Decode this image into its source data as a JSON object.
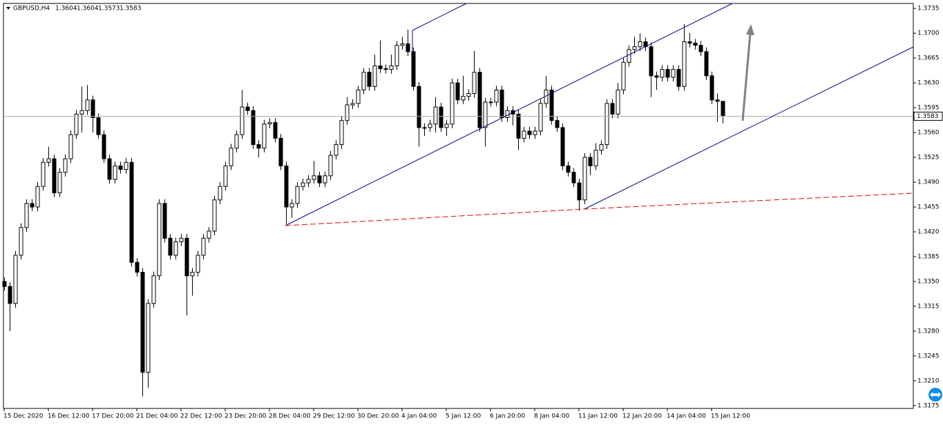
{
  "chart_data": {
    "type": "candlestick",
    "symbol": "GBPUSD,H4",
    "up_color": "#ffffff",
    "down_color": "#000000",
    "outline_color": "#000000",
    "ylim": [
      1.3171,
      1.3742
    ],
    "yticks": [
      1.3735,
      {
        "value": 1.37,
        "label": "1.3700"
      },
      1.3665,
      {
        "value": 1.363,
        "label": "1.3630"
      },
      1.3595,
      {
        "value": 1.356,
        "label": "1.3560"
      },
      1.3525,
      {
        "value": 1.349,
        "label": "1.3490"
      },
      1.3455,
      {
        "value": 1.342,
        "label": "1.3420"
      },
      1.3385,
      {
        "value": 1.335,
        "label": "1.3350"
      },
      1.3315,
      {
        "value": 1.328,
        "label": "1.3280"
      },
      1.3245,
      {
        "value": 1.321,
        "label": "1.3210"
      },
      1.3175
    ],
    "categories": [
      "15 Dec 2020",
      null,
      null,
      null,
      null,
      null,
      null,
      null,
      "16 Dec 12:00",
      null,
      null,
      null,
      null,
      null,
      null,
      null,
      "17 Dec 20:00",
      null,
      null,
      null,
      null,
      null,
      null,
      null,
      "21 Dec 04:00",
      null,
      null,
      null,
      null,
      null,
      null,
      null,
      "22 Dec 12:00",
      null,
      null,
      null,
      null,
      null,
      null,
      null,
      "23 Dec 20:00",
      null,
      null,
      null,
      null,
      null,
      null,
      null,
      "28 Dec 04:00",
      null,
      null,
      null,
      null,
      null,
      null,
      null,
      "29 Dec 12:00",
      null,
      null,
      null,
      null,
      null,
      null,
      null,
      "30 Dec 20:00",
      null,
      null,
      null,
      null,
      null,
      null,
      null,
      "4 Jan 04:00",
      null,
      null,
      null,
      null,
      null,
      null,
      null,
      "5 Jan 12:00",
      null,
      null,
      null,
      null,
      null,
      null,
      null,
      "6 Jan 20:00",
      null,
      null,
      null,
      null,
      null,
      null,
      null,
      "8 Jan 04:00",
      null,
      null,
      null,
      null,
      null,
      null,
      null,
      "11 Jan 12:00",
      null,
      null,
      null,
      null,
      null,
      null,
      null,
      "12 Jan 20:00",
      null,
      null,
      null,
      null,
      null,
      null,
      null,
      "14 Jan 04:00",
      null,
      null,
      null,
      null,
      null,
      null,
      null,
      "15 Jan 12:00",
      null,
      null
    ],
    "series": [
      {
        "name": "GBPUSD,H4",
        "open": [
          1.335,
          1.3343,
          1.3319,
          1.3387,
          1.3426,
          1.346,
          1.3455,
          1.3484,
          1.3518,
          1.3523,
          1.3475,
          1.3504,
          1.3523,
          1.3557,
          1.3586,
          1.3591,
          1.3606,
          1.3581,
          1.3557,
          1.3523,
          1.3494,
          1.3513,
          1.3508,
          1.3518,
          1.3377,
          1.3363,
          1.3222,
          1.3319,
          1.3358,
          1.346,
          1.3411,
          1.3387,
          1.3406,
          1.3411,
          1.3358,
          1.3363,
          1.3387,
          1.3411,
          1.3421,
          1.3465,
          1.3484,
          1.3513,
          1.3538,
          1.3557,
          1.3596,
          1.3591,
          1.3543,
          1.3538,
          1.3572,
          1.3574,
          1.3552,
          1.3513,
          1.3455,
          1.346,
          1.3484,
          1.3489,
          1.3494,
          1.3499,
          1.3489,
          1.3499,
          1.3528,
          1.3543,
          1.3577,
          1.3599,
          1.3601,
          1.362,
          1.3645,
          1.3625,
          1.3654,
          1.365,
          1.3649,
          1.3654,
          1.3683,
          1.3685,
          1.3674,
          1.3625,
          1.3567,
          1.3567,
          1.3572,
          1.3596,
          1.3567,
          1.3572,
          1.363,
          1.3606,
          1.3611,
          1.3615,
          1.3645,
          1.3567,
          1.3603,
          1.3603,
          1.362,
          1.3581,
          1.3591,
          1.3586,
          1.3552,
          1.3562,
          1.3557,
          1.3562,
          1.3601,
          1.362,
          1.3577,
          1.3567,
          1.3513,
          1.3504,
          1.3489,
          1.3465,
          1.3525,
          1.3513,
          1.3535,
          1.3543,
          1.3601,
          1.3586,
          1.362,
          1.3659,
          1.3677,
          1.3681,
          1.3688,
          1.3681,
          1.364,
          1.3638,
          1.3649,
          1.3638,
          1.3649,
          1.3625,
          1.3688,
          1.3686,
          1.3683,
          1.3674,
          1.364,
          1.3606,
          1.3604
        ],
        "high": [
          1.3356,
          1.3349,
          1.3393,
          1.3432,
          1.3466,
          1.3466,
          1.349,
          1.3524,
          1.354,
          1.3529,
          1.351,
          1.3529,
          1.3563,
          1.3592,
          1.3625,
          1.3627,
          1.3612,
          1.3587,
          1.3563,
          1.3529,
          1.3519,
          1.3519,
          1.3524,
          1.3524,
          1.3383,
          1.3369,
          1.3325,
          1.3364,
          1.3466,
          1.3466,
          1.3417,
          1.3412,
          1.3417,
          1.3417,
          1.3369,
          1.3393,
          1.3417,
          1.3427,
          1.3471,
          1.349,
          1.3519,
          1.3544,
          1.3563,
          1.362,
          1.3602,
          1.3597,
          1.3549,
          1.3578,
          1.358,
          1.358,
          1.3558,
          1.3519,
          1.3466,
          1.349,
          1.3495,
          1.35,
          1.352,
          1.3505,
          1.3505,
          1.3534,
          1.3549,
          1.3583,
          1.361,
          1.3607,
          1.3626,
          1.3651,
          1.3651,
          1.367,
          1.369,
          1.3656,
          1.367,
          1.3689,
          1.3695,
          1.3705,
          1.368,
          1.3631,
          1.3573,
          1.3578,
          1.361,
          1.3602,
          1.3578,
          1.3636,
          1.3636,
          1.364,
          1.3621,
          1.3675,
          1.3651,
          1.3609,
          1.3609,
          1.3626,
          1.3626,
          1.3597,
          1.3597,
          1.3592,
          1.3568,
          1.3568,
          1.3568,
          1.3607,
          1.364,
          1.3626,
          1.3583,
          1.3573,
          1.3519,
          1.351,
          1.3495,
          1.3531,
          1.3531,
          1.3545,
          1.3549,
          1.3607,
          1.3607,
          1.363,
          1.3665,
          1.3683,
          1.3695,
          1.37,
          1.3694,
          1.3687,
          1.3646,
          1.3655,
          1.3655,
          1.3655,
          1.3655,
          1.3713,
          1.37,
          1.3692,
          1.3689,
          1.368,
          1.3646,
          1.3615,
          1.3604
        ],
        "low": [
          1.3337,
          1.328,
          1.3313,
          1.3381,
          1.342,
          1.3449,
          1.3449,
          1.3478,
          1.3512,
          1.3469,
          1.3469,
          1.3498,
          1.3517,
          1.3551,
          1.356,
          1.3585,
          1.356,
          1.3551,
          1.3517,
          1.3488,
          1.3488,
          1.3502,
          1.3502,
          1.3371,
          1.3357,
          1.3188,
          1.32,
          1.3313,
          1.3352,
          1.3405,
          1.3381,
          1.3381,
          1.34,
          1.3302,
          1.333,
          1.3357,
          1.3381,
          1.3405,
          1.3415,
          1.3459,
          1.3478,
          1.3507,
          1.3532,
          1.3551,
          1.3585,
          1.3537,
          1.3525,
          1.3532,
          1.3566,
          1.3546,
          1.3507,
          1.3431,
          1.344,
          1.3454,
          1.3478,
          1.3483,
          1.3488,
          1.3483,
          1.3483,
          1.3493,
          1.3522,
          1.3537,
          1.3571,
          1.3593,
          1.3595,
          1.3614,
          1.3619,
          1.3619,
          1.3644,
          1.3643,
          1.3643,
          1.3648,
          1.3677,
          1.3668,
          1.3619,
          1.354,
          1.3555,
          1.3561,
          1.356,
          1.3561,
          1.3555,
          1.3566,
          1.36,
          1.36,
          1.3605,
          1.3609,
          1.3561,
          1.354,
          1.3597,
          1.3597,
          1.3575,
          1.3575,
          1.357,
          1.3535,
          1.3546,
          1.3551,
          1.3551,
          1.3556,
          1.3595,
          1.3571,
          1.3561,
          1.3507,
          1.3498,
          1.3483,
          1.345,
          1.3459,
          1.35,
          1.3507,
          1.3529,
          1.3537,
          1.358,
          1.358,
          1.3614,
          1.3653,
          1.3671,
          1.3675,
          1.3675,
          1.361,
          1.362,
          1.3632,
          1.3632,
          1.3632,
          1.3619,
          1.3619,
          1.368,
          1.3677,
          1.3668,
          1.3634,
          1.36,
          1.3575,
          1.3573
        ],
        "close": [
          1.3343,
          1.3319,
          1.3387,
          1.3426,
          1.346,
          1.3455,
          1.3484,
          1.3518,
          1.3523,
          1.3475,
          1.3504,
          1.3523,
          1.3557,
          1.3586,
          1.3591,
          1.3606,
          1.3581,
          1.3557,
          1.3523,
          1.3494,
          1.3513,
          1.3508,
          1.3518,
          1.3377,
          1.3363,
          1.3222,
          1.3319,
          1.3358,
          1.346,
          1.3411,
          1.3387,
          1.3406,
          1.3411,
          1.3358,
          1.3363,
          1.3387,
          1.3411,
          1.3421,
          1.3465,
          1.3484,
          1.3513,
          1.3538,
          1.3557,
          1.3596,
          1.3591,
          1.3543,
          1.3538,
          1.3572,
          1.3574,
          1.3552,
          1.3513,
          1.3455,
          1.346,
          1.3484,
          1.3489,
          1.3494,
          1.3499,
          1.3489,
          1.3499,
          1.3528,
          1.3543,
          1.3577,
          1.3599,
          1.3601,
          1.362,
          1.3645,
          1.3625,
          1.3654,
          1.365,
          1.3649,
          1.3654,
          1.3683,
          1.3685,
          1.3674,
          1.3625,
          1.3567,
          1.3567,
          1.3572,
          1.3596,
          1.3567,
          1.3572,
          1.363,
          1.3606,
          1.3611,
          1.3615,
          1.3645,
          1.3567,
          1.3603,
          1.3603,
          1.362,
          1.3581,
          1.3591,
          1.3586,
          1.3552,
          1.3562,
          1.3557,
          1.3562,
          1.3601,
          1.362,
          1.3577,
          1.3567,
          1.3513,
          1.3504,
          1.3489,
          1.3465,
          1.3525,
          1.3513,
          1.3535,
          1.3543,
          1.3601,
          1.3586,
          1.362,
          1.3659,
          1.3677,
          1.3681,
          1.3688,
          1.3681,
          1.364,
          1.3638,
          1.3649,
          1.3638,
          1.3649,
          1.3625,
          1.3688,
          1.3686,
          1.3683,
          1.3674,
          1.364,
          1.3606,
          1.3604,
          1.3583
        ]
      }
    ]
  }
}
